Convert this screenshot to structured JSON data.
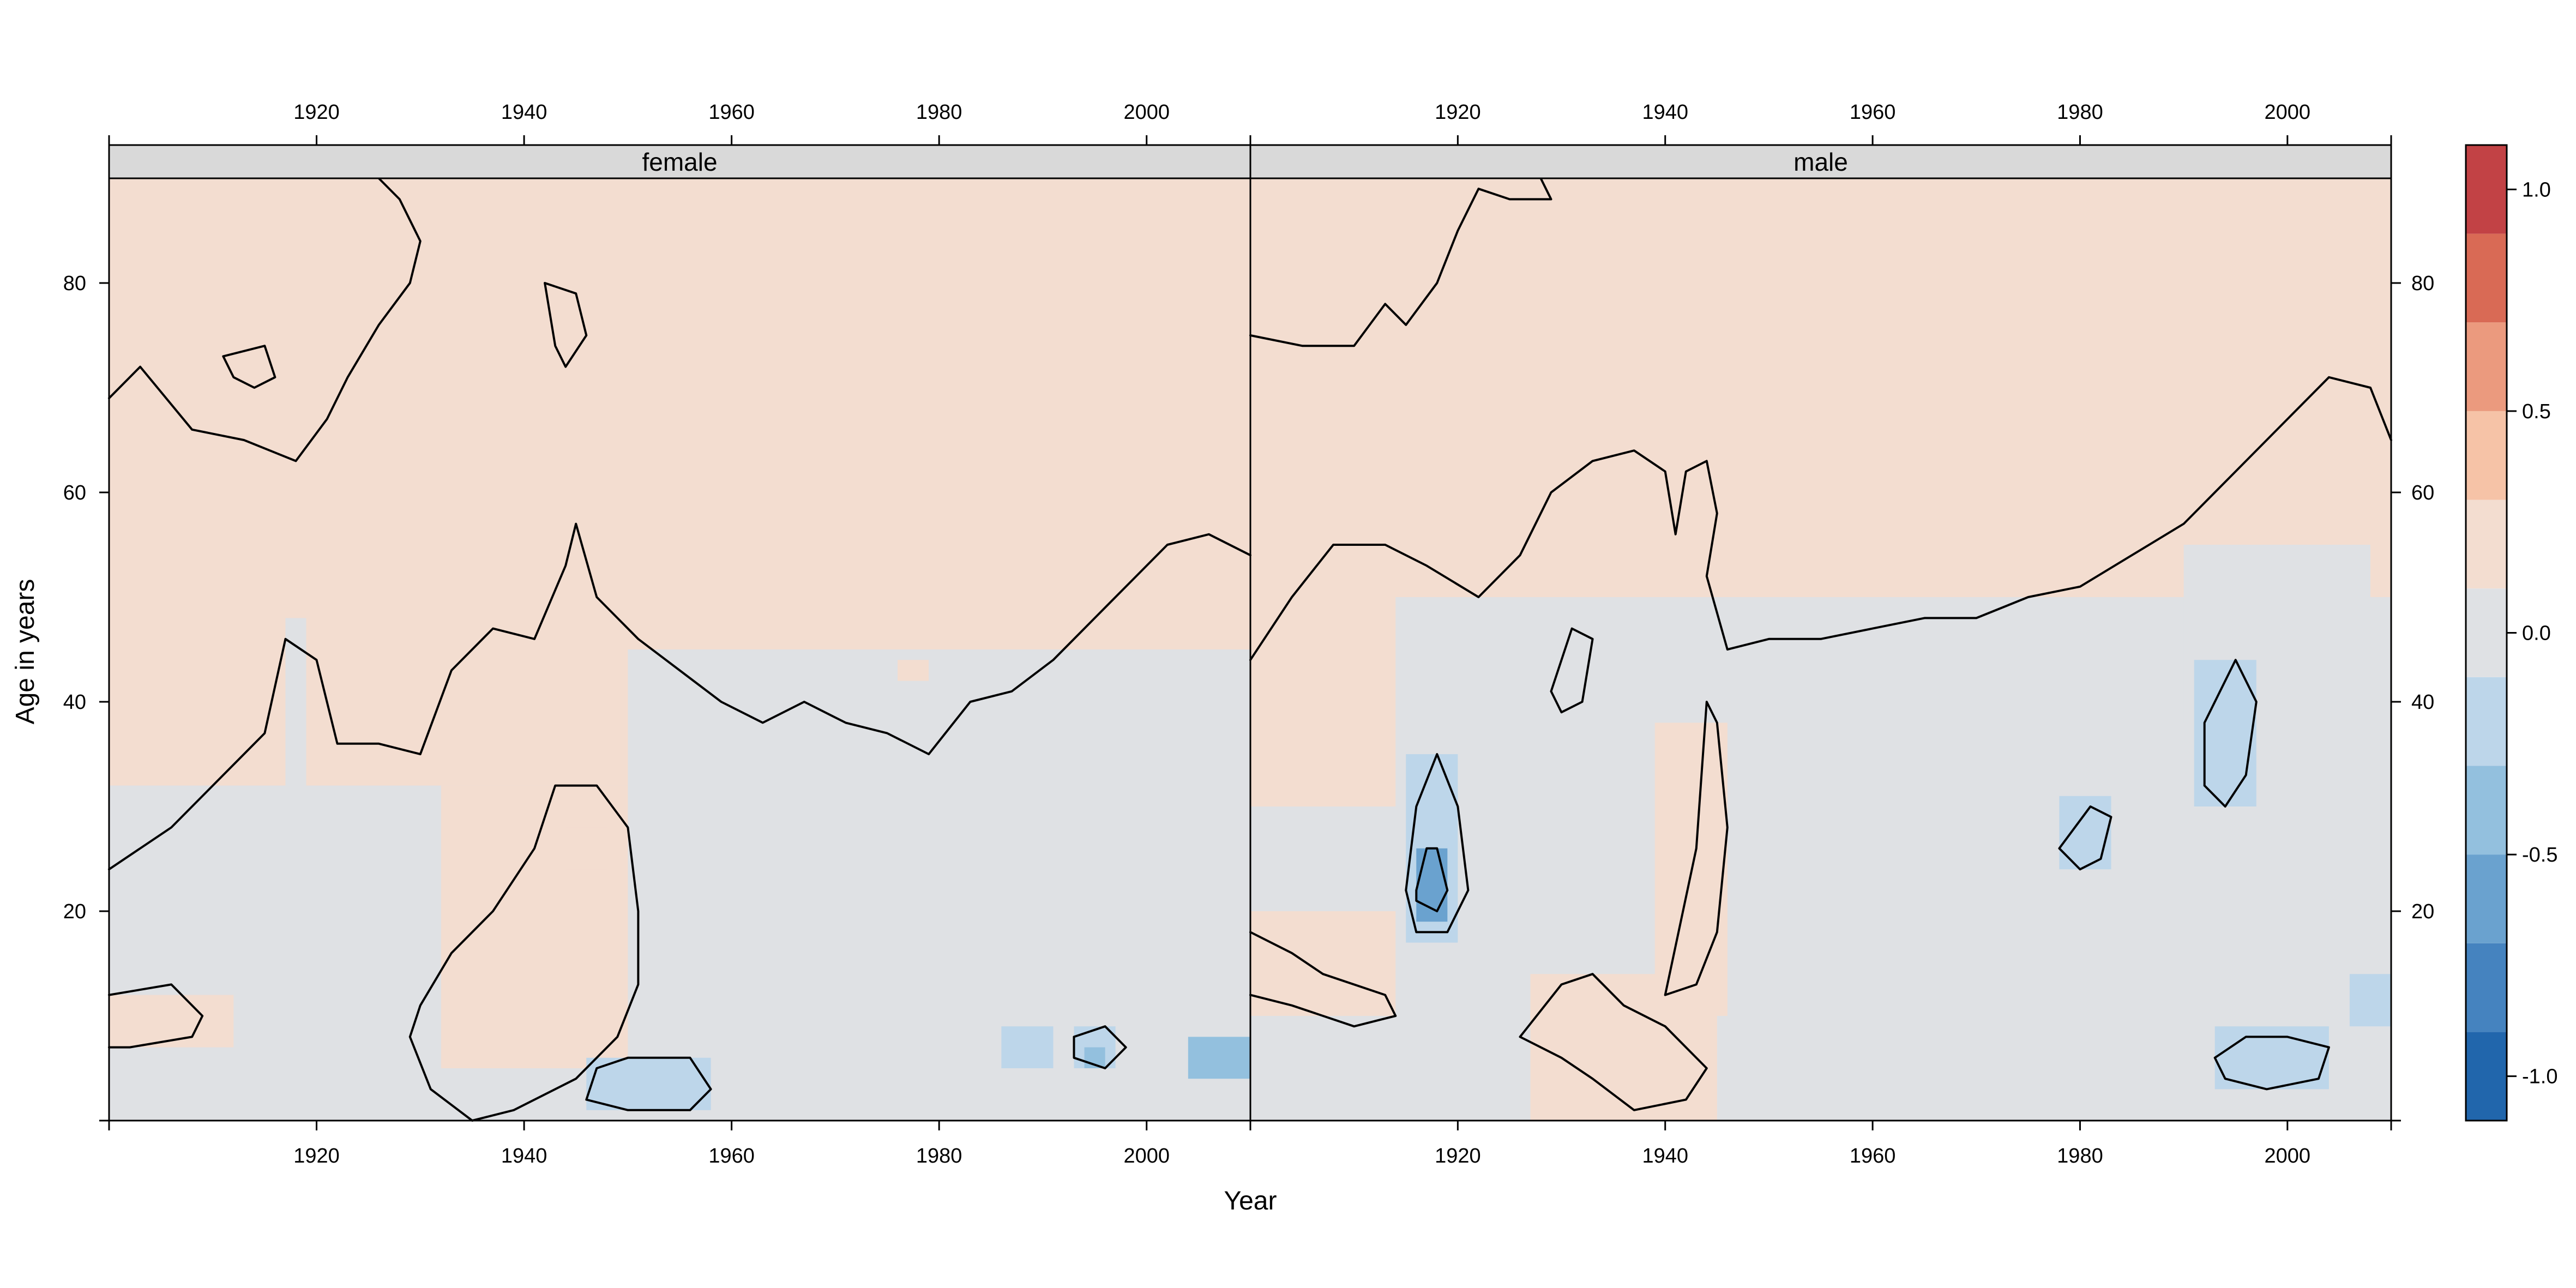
{
  "chart_data": {
    "type": "heatmap",
    "title": "",
    "xlabel": "Year",
    "ylabel": "Age in years",
    "xlim": [
      1900,
      2010
    ],
    "ylim": [
      0,
      90
    ],
    "x_ticks": [
      1920,
      1940,
      1960,
      1980,
      2000
    ],
    "y_ticks": [
      20,
      40,
      60,
      80
    ],
    "panels": [
      {
        "name": "female",
        "regions": [
          {
            "level": 0.0,
            "x": [
              1900,
              2010
            ],
            "y": [
              0,
              90
            ]
          },
          {
            "level": 0.1,
            "x": [
              1900,
              2010
            ],
            "y": [
              45,
              90
            ]
          },
          {
            "level": 0.1,
            "x": [
              1900,
              1950
            ],
            "y": [
              32,
              45
            ]
          },
          {
            "level": 0.1,
            "x": [
              1900,
              1912
            ],
            "y": [
              7,
              12
            ]
          },
          {
            "level": 0.1,
            "x": [
              1932,
              1950
            ],
            "y": [
              5,
              32
            ]
          },
          {
            "level": 0.2,
            "x": [
              1944,
              1948
            ],
            "y": [
              24,
              28
            ]
          },
          {
            "level": 0.2,
            "x": [
              1976,
              1979
            ],
            "y": [
              42,
              44
            ]
          },
          {
            "level": -0.1,
            "x": [
              1917,
              1919
            ],
            "y": [
              0,
              48
            ]
          },
          {
            "level": -0.1,
            "x": [
              1955,
              2010
            ],
            "y": [
              0,
              30
            ]
          },
          {
            "level": -0.3,
            "x": [
              1946,
              1958
            ],
            "y": [
              1,
              6
            ]
          },
          {
            "level": -0.3,
            "x": [
              1986,
              1991
            ],
            "y": [
              5,
              9
            ]
          },
          {
            "level": -0.3,
            "x": [
              1993,
              1997
            ],
            "y": [
              5,
              9
            ]
          },
          {
            "level": -0.5,
            "x": [
              1994,
              1996
            ],
            "y": [
              5,
              7
            ]
          },
          {
            "level": -0.5,
            "x": [
              2004,
              2010
            ],
            "y": [
              4,
              8
            ]
          }
        ]
      },
      {
        "name": "male",
        "regions": [
          {
            "level": 0.0,
            "x": [
              1900,
              2010
            ],
            "y": [
              0,
              90
            ]
          },
          {
            "level": 0.1,
            "x": [
              1900,
              2010
            ],
            "y": [
              50,
              90
            ]
          },
          {
            "level": 0.1,
            "x": [
              1900,
              1914
            ],
            "y": [
              30,
              50
            ]
          },
          {
            "level": 0.1,
            "x": [
              1900,
              1914
            ],
            "y": [
              10,
              20
            ]
          },
          {
            "level": 0.1,
            "x": [
              1927,
              1945
            ],
            "y": [
              0,
              14
            ]
          },
          {
            "level": 0.1,
            "x": [
              1939,
              1946
            ],
            "y": [
              10,
              38
            ]
          },
          {
            "level": 0.2,
            "x": [
              1940,
              1944
            ],
            "y": [
              21,
              26
            ]
          },
          {
            "level": -0.1,
            "x": [
              1917,
              1919
            ],
            "y": [
              0,
              50
            ]
          },
          {
            "level": -0.1,
            "x": [
              1955,
              2010
            ],
            "y": [
              2,
              40
            ]
          },
          {
            "level": -0.1,
            "x": [
              1990,
              2008
            ],
            "y": [
              38,
              55
            ]
          },
          {
            "level": -0.3,
            "x": [
              1915,
              1920
            ],
            "y": [
              17,
              35
            ]
          },
          {
            "level": -0.3,
            "x": [
              1991,
              1997
            ],
            "y": [
              30,
              44
            ]
          },
          {
            "level": -0.3,
            "x": [
              1978,
              1983
            ],
            "y": [
              24,
              31
            ]
          },
          {
            "level": -0.3,
            "x": [
              1993,
              2004
            ],
            "y": [
              3,
              9
            ]
          },
          {
            "level": -0.3,
            "x": [
              2006,
              2010
            ],
            "y": [
              9,
              14
            ]
          },
          {
            "level": -0.7,
            "x": [
              1916,
              1919
            ],
            "y": [
              19,
              26
            ]
          }
        ]
      }
    ],
    "contours": [
      {
        "panel": "female",
        "points": [
          [
            1900,
            69
          ],
          [
            1903,
            72
          ],
          [
            1908,
            66
          ],
          [
            1913,
            65
          ],
          [
            1918,
            63
          ],
          [
            1921,
            67
          ],
          [
            1923,
            71
          ],
          [
            1926,
            76
          ],
          [
            1929,
            80
          ],
          [
            1930,
            84
          ],
          [
            1928,
            88
          ],
          [
            1926,
            90
          ]
        ]
      },
      {
        "panel": "female",
        "points": [
          [
            1900,
            24
          ],
          [
            1906,
            28
          ],
          [
            1911,
            33
          ],
          [
            1915,
            37
          ],
          [
            1917,
            46
          ],
          [
            1920,
            44
          ],
          [
            1922,
            36
          ],
          [
            1926,
            36
          ],
          [
            1930,
            35
          ],
          [
            1933,
            43
          ],
          [
            1937,
            47
          ],
          [
            1941,
            46
          ],
          [
            1944,
            53
          ],
          [
            1945,
            57
          ],
          [
            1947,
            50
          ],
          [
            1951,
            46
          ],
          [
            1955,
            43
          ],
          [
            1959,
            40
          ],
          [
            1963,
            38
          ],
          [
            1967,
            40
          ],
          [
            1971,
            38
          ],
          [
            1975,
            37
          ],
          [
            1979,
            35
          ],
          [
            1983,
            40
          ],
          [
            1987,
            41
          ],
          [
            1991,
            44
          ],
          [
            1995,
            48
          ],
          [
            1999,
            52
          ],
          [
            2002,
            55
          ],
          [
            2006,
            56
          ],
          [
            2010,
            54
          ]
        ]
      },
      {
        "panel": "female",
        "points": [
          [
            1929,
            8
          ],
          [
            1931,
            3
          ],
          [
            1935,
            0
          ],
          [
            1939,
            1
          ],
          [
            1945,
            4
          ],
          [
            1949,
            8
          ],
          [
            1951,
            13
          ],
          [
            1951,
            20
          ],
          [
            1950,
            28
          ],
          [
            1947,
            32
          ],
          [
            1943,
            32
          ],
          [
            1941,
            26
          ],
          [
            1937,
            20
          ],
          [
            1933,
            16
          ],
          [
            1930,
            11
          ],
          [
            1929,
            8
          ]
        ]
      },
      {
        "panel": "female",
        "points": [
          [
            1946,
            2
          ],
          [
            1950,
            1
          ],
          [
            1956,
            1
          ],
          [
            1958,
            3
          ],
          [
            1956,
            6
          ],
          [
            1950,
            6
          ],
          [
            1947,
            5
          ],
          [
            1946,
            2
          ]
        ]
      },
      {
        "panel": "female",
        "points": [
          [
            1900,
            12
          ],
          [
            1906,
            13
          ],
          [
            1909,
            10
          ],
          [
            1908,
            8
          ],
          [
            1902,
            7
          ],
          [
            1900,
            7
          ]
        ]
      },
      {
        "panel": "female",
        "points": [
          [
            1911,
            73
          ],
          [
            1915,
            74
          ],
          [
            1916,
            71
          ],
          [
            1914,
            70
          ],
          [
            1912,
            71
          ],
          [
            1911,
            73
          ]
        ]
      },
      {
        "panel": "female",
        "points": [
          [
            1942,
            80
          ],
          [
            1945,
            79
          ],
          [
            1946,
            75
          ],
          [
            1944,
            72
          ],
          [
            1943,
            74
          ],
          [
            1942,
            80
          ]
        ]
      },
      {
        "panel": "female",
        "points": [
          [
            1993,
            8
          ],
          [
            1996,
            9
          ],
          [
            1998,
            7
          ],
          [
            1996,
            5
          ],
          [
            1993,
            6
          ],
          [
            1993,
            8
          ]
        ]
      },
      {
        "panel": "male",
        "points": [
          [
            1900,
            75
          ],
          [
            1905,
            74
          ],
          [
            1910,
            74
          ],
          [
            1913,
            78
          ],
          [
            1915,
            76
          ],
          [
            1918,
            80
          ],
          [
            1920,
            85
          ],
          [
            1922,
            89
          ],
          [
            1925,
            88
          ],
          [
            1929,
            88
          ],
          [
            1928,
            90
          ]
        ]
      },
      {
        "panel": "male",
        "points": [
          [
            1900,
            44
          ],
          [
            1904,
            50
          ],
          [
            1908,
            55
          ],
          [
            1913,
            55
          ],
          [
            1917,
            53
          ],
          [
            1922,
            50
          ],
          [
            1926,
            54
          ],
          [
            1929,
            60
          ],
          [
            1933,
            63
          ],
          [
            1937,
            64
          ],
          [
            1940,
            62
          ],
          [
            1941,
            56
          ],
          [
            1942,
            62
          ],
          [
            1944,
            63
          ],
          [
            1945,
            58
          ],
          [
            1944,
            52
          ],
          [
            1946,
            45
          ],
          [
            1950,
            46
          ],
          [
            1955,
            46
          ],
          [
            1960,
            47
          ],
          [
            1965,
            48
          ],
          [
            1970,
            48
          ],
          [
            1975,
            50
          ],
          [
            1980,
            51
          ],
          [
            1985,
            54
          ],
          [
            1990,
            57
          ],
          [
            1995,
            62
          ],
          [
            2000,
            67
          ],
          [
            2004,
            71
          ],
          [
            2008,
            70
          ],
          [
            2010,
            65
          ]
        ]
      },
      {
        "panel": "male",
        "points": [
          [
            1915,
            22
          ],
          [
            1916,
            30
          ],
          [
            1918,
            35
          ],
          [
            1920,
            30
          ],
          [
            1921,
            22
          ],
          [
            1919,
            18
          ],
          [
            1916,
            18
          ],
          [
            1915,
            22
          ]
        ]
      },
      {
        "panel": "male",
        "points": [
          [
            1916,
            22
          ],
          [
            1917,
            26
          ],
          [
            1918,
            26
          ],
          [
            1919,
            22
          ],
          [
            1918,
            20
          ],
          [
            1916,
            21
          ],
          [
            1916,
            22
          ]
        ]
      },
      {
        "panel": "male",
        "points": [
          [
            1929,
            41
          ],
          [
            1931,
            47
          ],
          [
            1933,
            46
          ],
          [
            1932,
            40
          ],
          [
            1930,
            39
          ],
          [
            1929,
            41
          ]
        ]
      },
      {
        "panel": "male",
        "points": [
          [
            1940,
            12
          ],
          [
            1943,
            26
          ],
          [
            1944,
            40
          ],
          [
            1945,
            38
          ],
          [
            1946,
            28
          ],
          [
            1945,
            18
          ],
          [
            1943,
            13
          ],
          [
            1940,
            12
          ]
        ]
      },
      {
        "panel": "male",
        "points": [
          [
            1926,
            8
          ],
          [
            1930,
            13
          ],
          [
            1933,
            14
          ],
          [
            1936,
            11
          ],
          [
            1940,
            9
          ],
          [
            1944,
            5
          ],
          [
            1942,
            2
          ],
          [
            1937,
            1
          ],
          [
            1933,
            4
          ],
          [
            1930,
            6
          ],
          [
            1926,
            8
          ]
        ]
      },
      {
        "panel": "male",
        "points": [
          [
            1992,
            32
          ],
          [
            1992,
            38
          ],
          [
            1995,
            44
          ],
          [
            1997,
            40
          ],
          [
            1996,
            33
          ],
          [
            1994,
            30
          ],
          [
            1992,
            32
          ]
        ]
      },
      {
        "panel": "male",
        "points": [
          [
            1978,
            26
          ],
          [
            1981,
            30
          ],
          [
            1983,
            29
          ],
          [
            1982,
            25
          ],
          [
            1980,
            24
          ],
          [
            1978,
            26
          ]
        ]
      },
      {
        "panel": "male",
        "points": [
          [
            1993,
            6
          ],
          [
            1996,
            8
          ],
          [
            2000,
            8
          ],
          [
            2004,
            7
          ],
          [
            2003,
            4
          ],
          [
            1998,
            3
          ],
          [
            1994,
            4
          ],
          [
            1993,
            6
          ]
        ]
      },
      {
        "panel": "male",
        "points": [
          [
            1900,
            18
          ],
          [
            1904,
            16
          ],
          [
            1907,
            14
          ],
          [
            1913,
            12
          ],
          [
            1914,
            10
          ],
          [
            1910,
            9
          ],
          [
            1904,
            11
          ],
          [
            1900,
            12
          ]
        ]
      }
    ],
    "colorbar": {
      "levels": [
        -1.1,
        -0.9,
        -0.7,
        -0.5,
        -0.3,
        -0.1,
        0.1,
        0.3,
        0.5,
        0.7,
        0.9,
        1.1
      ],
      "colors": [
        "#2166ac",
        "#4583bf",
        "#6aa2cf",
        "#93c0de",
        "#bdd6ea",
        "#dfe1e4",
        "#f3ddd0",
        "#f6c3a7",
        "#eb9a7e",
        "#d96a55",
        "#c24245",
        "#a51e30"
      ],
      "ticks": [
        -1.0,
        -0.5,
        0.0,
        0.5,
        1.0
      ],
      "tick_labels": [
        "-1.0",
        "-0.5",
        "0.0",
        "0.5",
        "1.0"
      ]
    }
  }
}
